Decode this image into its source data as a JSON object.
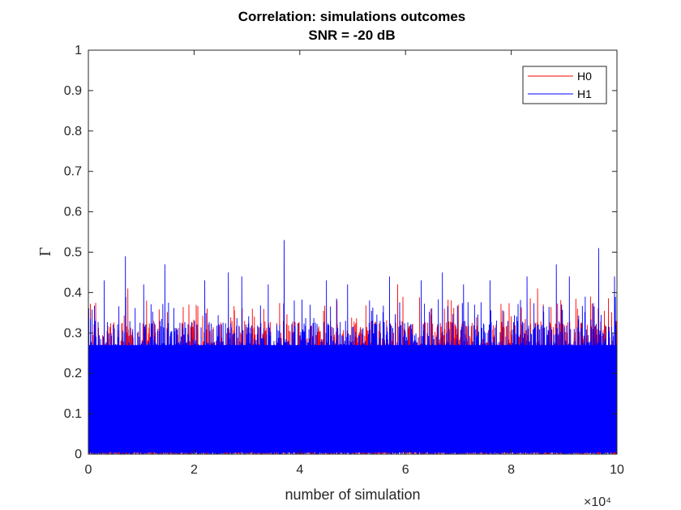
{
  "chart_data": {
    "type": "line",
    "title": [
      "Correlation: simulations outcomes",
      "SNR = -20 dB"
    ],
    "xlabel": "number of simulation",
    "ylabel": "Γ",
    "xlim": [
      0,
      100000
    ],
    "ylim": [
      0,
      1
    ],
    "x_ticks": [
      0,
      20000,
      40000,
      60000,
      80000,
      100000
    ],
    "x_tick_labels": [
      "0",
      "2",
      "4",
      "6",
      "8",
      "10"
    ],
    "x_exponent_label": "×10⁴",
    "y_ticks": [
      0,
      0.1,
      0.2,
      0.3,
      0.4,
      0.5,
      0.6,
      0.7,
      0.8,
      0.9,
      1
    ],
    "y_tick_labels": [
      "0",
      "0.1",
      "0.2",
      "0.3",
      "0.4",
      "0.5",
      "0.6",
      "0.7",
      "0.8",
      "0.9",
      "1"
    ],
    "grid": false,
    "legend_position": "top-right",
    "series": [
      {
        "name": "H0",
        "color": "#ff0000",
        "num_points": 100000,
        "value_range": [
          0,
          0.43
        ],
        "peaks": [
          {
            "x": 7500,
            "y": 0.41
          },
          {
            "x": 11000,
            "y": 0.38
          },
          {
            "x": 19000,
            "y": 0.37
          },
          {
            "x": 31000,
            "y": 0.36
          },
          {
            "x": 47000,
            "y": 0.38
          },
          {
            "x": 58500,
            "y": 0.42
          },
          {
            "x": 70000,
            "y": 0.37
          },
          {
            "x": 85000,
            "y": 0.41
          },
          {
            "x": 95000,
            "y": 0.39
          }
        ]
      },
      {
        "name": "H1",
        "color": "#0000ff",
        "num_points": 100000,
        "value_range": [
          0,
          0.53
        ],
        "peaks": [
          {
            "x": 1300,
            "y": 0.33
          },
          {
            "x": 3000,
            "y": 0.43
          },
          {
            "x": 7000,
            "y": 0.49
          },
          {
            "x": 10500,
            "y": 0.42
          },
          {
            "x": 14500,
            "y": 0.47
          },
          {
            "x": 22000,
            "y": 0.43
          },
          {
            "x": 26500,
            "y": 0.45
          },
          {
            "x": 29000,
            "y": 0.44
          },
          {
            "x": 34000,
            "y": 0.42
          },
          {
            "x": 37000,
            "y": 0.53
          },
          {
            "x": 45000,
            "y": 0.43
          },
          {
            "x": 49000,
            "y": 0.42
          },
          {
            "x": 57000,
            "y": 0.44
          },
          {
            "x": 63000,
            "y": 0.43
          },
          {
            "x": 67000,
            "y": 0.45
          },
          {
            "x": 71000,
            "y": 0.42
          },
          {
            "x": 76000,
            "y": 0.43
          },
          {
            "x": 83000,
            "y": 0.44
          },
          {
            "x": 88500,
            "y": 0.47
          },
          {
            "x": 91000,
            "y": 0.44
          },
          {
            "x": 96500,
            "y": 0.51
          },
          {
            "x": 99500,
            "y": 0.44
          }
        ]
      }
    ]
  }
}
